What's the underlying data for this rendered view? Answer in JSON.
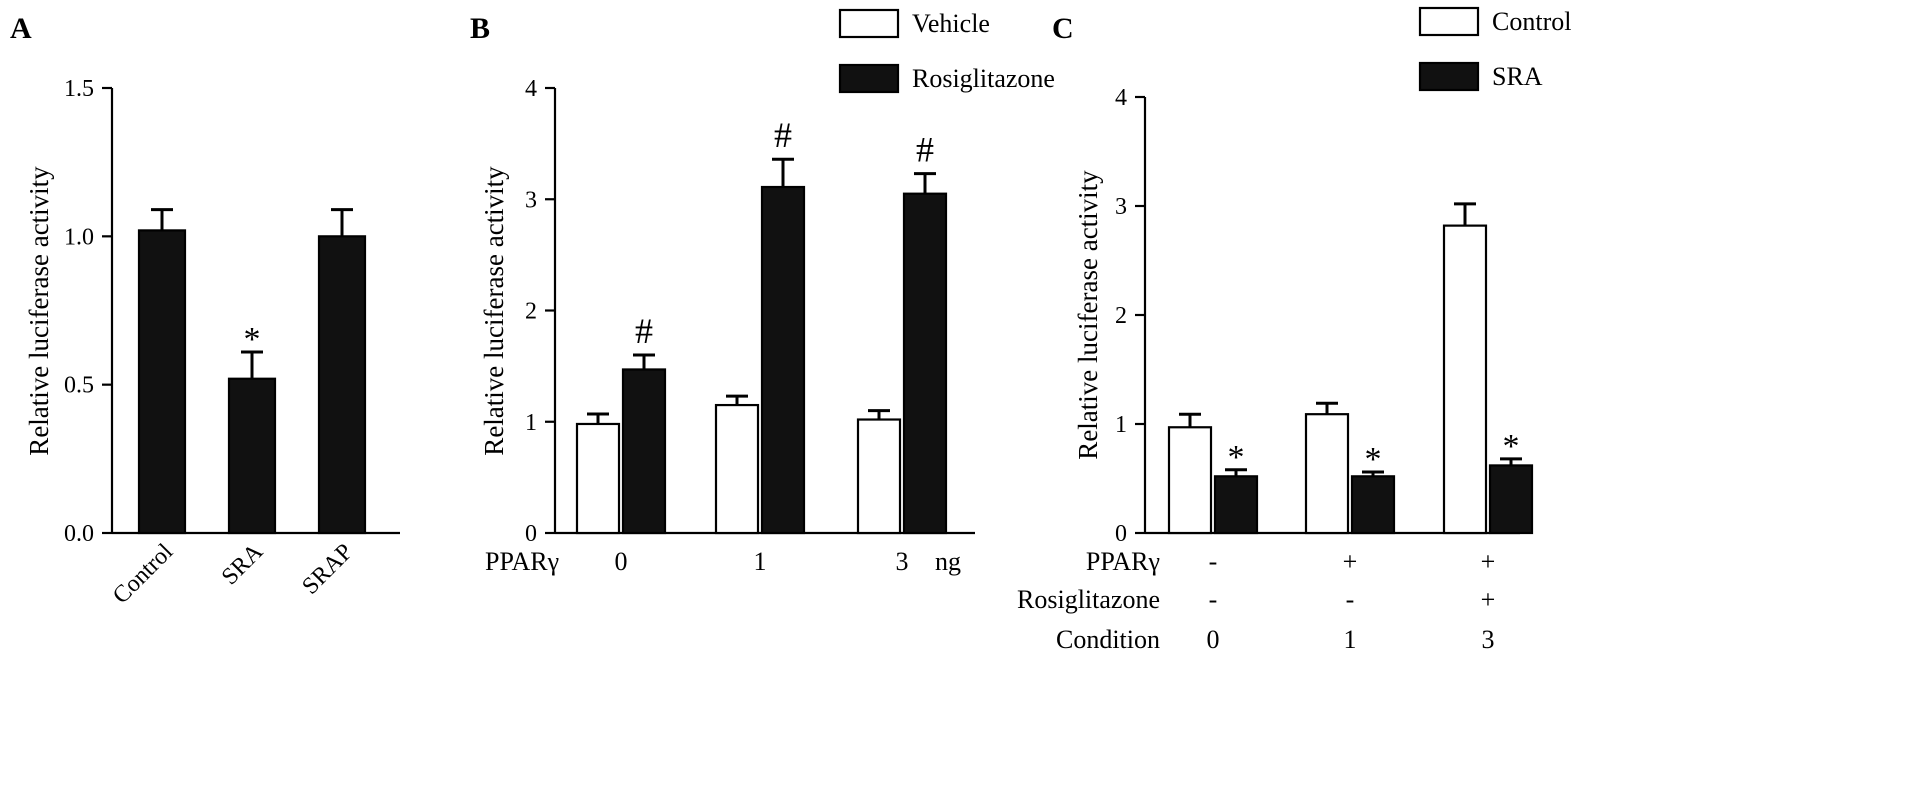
{
  "panels": [
    {
      "id": "A",
      "panel_label": "A",
      "chart_data": {
        "type": "bar",
        "title": "",
        "xlabel": "",
        "ylabel": "Relative luciferase activity",
        "ylim": [
          0,
          1.5
        ],
        "yticks": [
          "0.0",
          "0.5",
          "1.0",
          "1.5"
        ],
        "categories": [
          "Control",
          "SRA",
          "SRAP"
        ],
        "series": [
          {
            "fill": "#111111",
            "values": [
              1.02,
              0.52,
              1.0
            ],
            "errors": [
              0.07,
              0.09,
              0.09
            ],
            "marks": [
              "",
              "*",
              ""
            ]
          }
        ]
      }
    },
    {
      "id": "B",
      "panel_label": "B",
      "chart_data": {
        "type": "bar",
        "title": "",
        "xlabel": "",
        "ylabel": "Relative luciferase activity",
        "ylim": [
          0,
          4
        ],
        "yticks": [
          "0",
          "1",
          "2",
          "3",
          "4"
        ],
        "x_row_label": "PPARγ",
        "categories": [
          "0",
          "1",
          "3"
        ],
        "x_unit": "ng",
        "legend_position": "top-right",
        "series": [
          {
            "name": "Vehicle",
            "fill": "#ffffff",
            "values": [
              0.98,
              1.15,
              1.02
            ],
            "errors": [
              0.09,
              0.08,
              0.08
            ],
            "marks": [
              "",
              "",
              ""
            ]
          },
          {
            "name": "Rosiglitazone",
            "fill": "#111111",
            "values": [
              1.47,
              3.11,
              3.05
            ],
            "errors": [
              0.13,
              0.25,
              0.18
            ],
            "marks": [
              "#",
              "#",
              "#"
            ]
          }
        ]
      }
    },
    {
      "id": "C",
      "panel_label": "C",
      "chart_data": {
        "type": "bar",
        "title": "",
        "xlabel": "",
        "ylabel": "Relative luciferase activity",
        "ylim": [
          0,
          4
        ],
        "yticks": [
          "0",
          "1",
          "2",
          "3",
          "4"
        ],
        "categories": [
          "0",
          "1",
          "3"
        ],
        "legend_position": "top-right",
        "condition_rows": [
          {
            "label": "PPARγ",
            "values": [
              "-",
              "+",
              "+"
            ]
          },
          {
            "label": "Rosiglitazone",
            "values": [
              "-",
              "-",
              "+"
            ]
          },
          {
            "label": "Condition",
            "values": [
              "0",
              "1",
              "3"
            ]
          }
        ],
        "series": [
          {
            "name": "Control",
            "fill": "#ffffff",
            "values": [
              0.97,
              1.09,
              2.82
            ],
            "errors": [
              0.12,
              0.1,
              0.2
            ],
            "marks": [
              "",
              "",
              ""
            ]
          },
          {
            "name": "SRA",
            "fill": "#111111",
            "values": [
              0.52,
              0.52,
              0.62
            ],
            "errors": [
              0.06,
              0.04,
              0.06
            ],
            "marks": [
              "*",
              "*",
              "*"
            ]
          }
        ]
      }
    }
  ]
}
